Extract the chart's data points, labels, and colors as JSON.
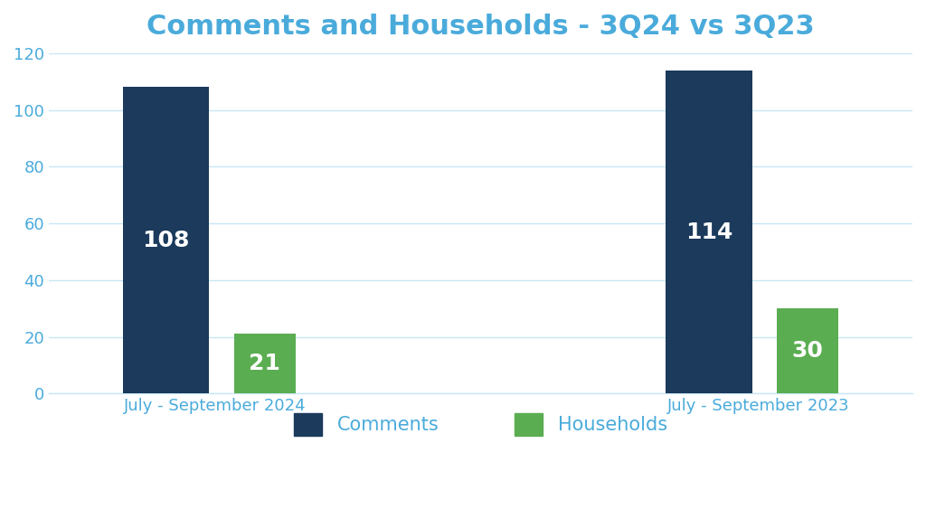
{
  "title": "Comments and Households - 3Q24 vs 3Q23",
  "title_color": "#4AABDB",
  "title_fontsize": 22,
  "title_fontweight": "bold",
  "groups": [
    "July - September 2024",
    "July - September 2023"
  ],
  "comments_values": [
    108,
    114
  ],
  "households_values": [
    21,
    30
  ],
  "comments_color": "#1B3A5C",
  "households_color": "#5BAD52",
  "bar_label_color": "#ffffff",
  "bar_label_fontsize": 18,
  "bar_label_fontweight": "bold",
  "xlabel_color": "#4AABDB",
  "xlabel_fontsize": 13,
  "ytick_color": "#4AABDB",
  "ytick_fontsize": 13,
  "ylim": [
    0,
    120
  ],
  "yticks": [
    0,
    20,
    40,
    60,
    80,
    100,
    120
  ],
  "grid_color": "#C8E6F5",
  "background_color": "#ffffff",
  "legend_labels": [
    "Comments",
    "Households"
  ],
  "legend_fontsize": 15,
  "comments_bar_width": 0.35,
  "households_bar_width": 0.25,
  "group_centers": [
    1.0,
    3.2
  ]
}
